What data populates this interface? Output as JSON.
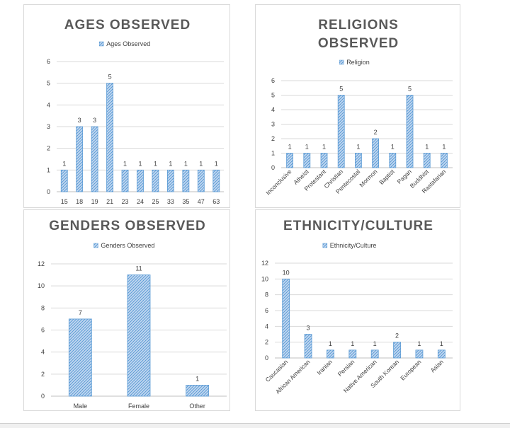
{
  "colors": {
    "bar_fill": "#c5d9f1",
    "bar_stroke": "#5b9bd5",
    "hatch": "#5b9bd5",
    "grid": "#d9d9d9",
    "title": "#595959",
    "text": "#404040"
  },
  "chart_data": [
    {
      "type": "bar",
      "title": "AGES OBSERVED",
      "legend": "Ages Observed",
      "categories": [
        "15",
        "18",
        "19",
        "21",
        "23",
        "24",
        "25",
        "33",
        "35",
        "47",
        "63"
      ],
      "values": [
        1,
        3,
        3,
        5,
        1,
        1,
        1,
        1,
        1,
        1,
        1
      ],
      "ylim": [
        0,
        6
      ],
      "yticks": [
        "0",
        "1",
        "2",
        "3",
        "4",
        "5",
        "6"
      ],
      "xlabel": "",
      "ylabel": ""
    },
    {
      "type": "bar",
      "title": "RELIGIONS OBSERVED",
      "title_lines": [
        "RELIGIONS",
        "OBSERVED"
      ],
      "legend": "Religion",
      "categories": [
        "Inconclusive",
        "Atheist",
        "Protestant",
        "Christian",
        "Pentecostal",
        "Mormon",
        "Baptist",
        "Pagan",
        "Buddhist",
        "Rastafarian"
      ],
      "values": [
        1,
        1,
        1,
        5,
        1,
        2,
        1,
        5,
        1,
        1
      ],
      "ylim": [
        0,
        6
      ],
      "yticks": [
        "0",
        "1",
        "2",
        "3",
        "4",
        "5",
        "6"
      ],
      "xlabel": "",
      "ylabel": ""
    },
    {
      "type": "bar",
      "title": "GENDERS OBSERVED",
      "legend": "Genders Observed",
      "categories": [
        "Male",
        "Female",
        "Other"
      ],
      "values": [
        7,
        11,
        1
      ],
      "ylim": [
        0,
        12
      ],
      "yticks": [
        "0",
        "2",
        "4",
        "6",
        "8",
        "10",
        "12"
      ],
      "xlabel": "",
      "ylabel": ""
    },
    {
      "type": "bar",
      "title": "ETHNICITY/CULTURE",
      "legend": "Ethnicity/Culture",
      "categories": [
        "Caucasian",
        "African American",
        "Iranian",
        "Persian",
        "Native American",
        "South Korean",
        "European",
        "Asian"
      ],
      "values": [
        10,
        3,
        1,
        1,
        1,
        2,
        1,
        1
      ],
      "ylim": [
        0,
        12
      ],
      "yticks": [
        "0",
        "2",
        "4",
        "6",
        "8",
        "10",
        "12"
      ],
      "xlabel": "",
      "ylabel": ""
    }
  ]
}
